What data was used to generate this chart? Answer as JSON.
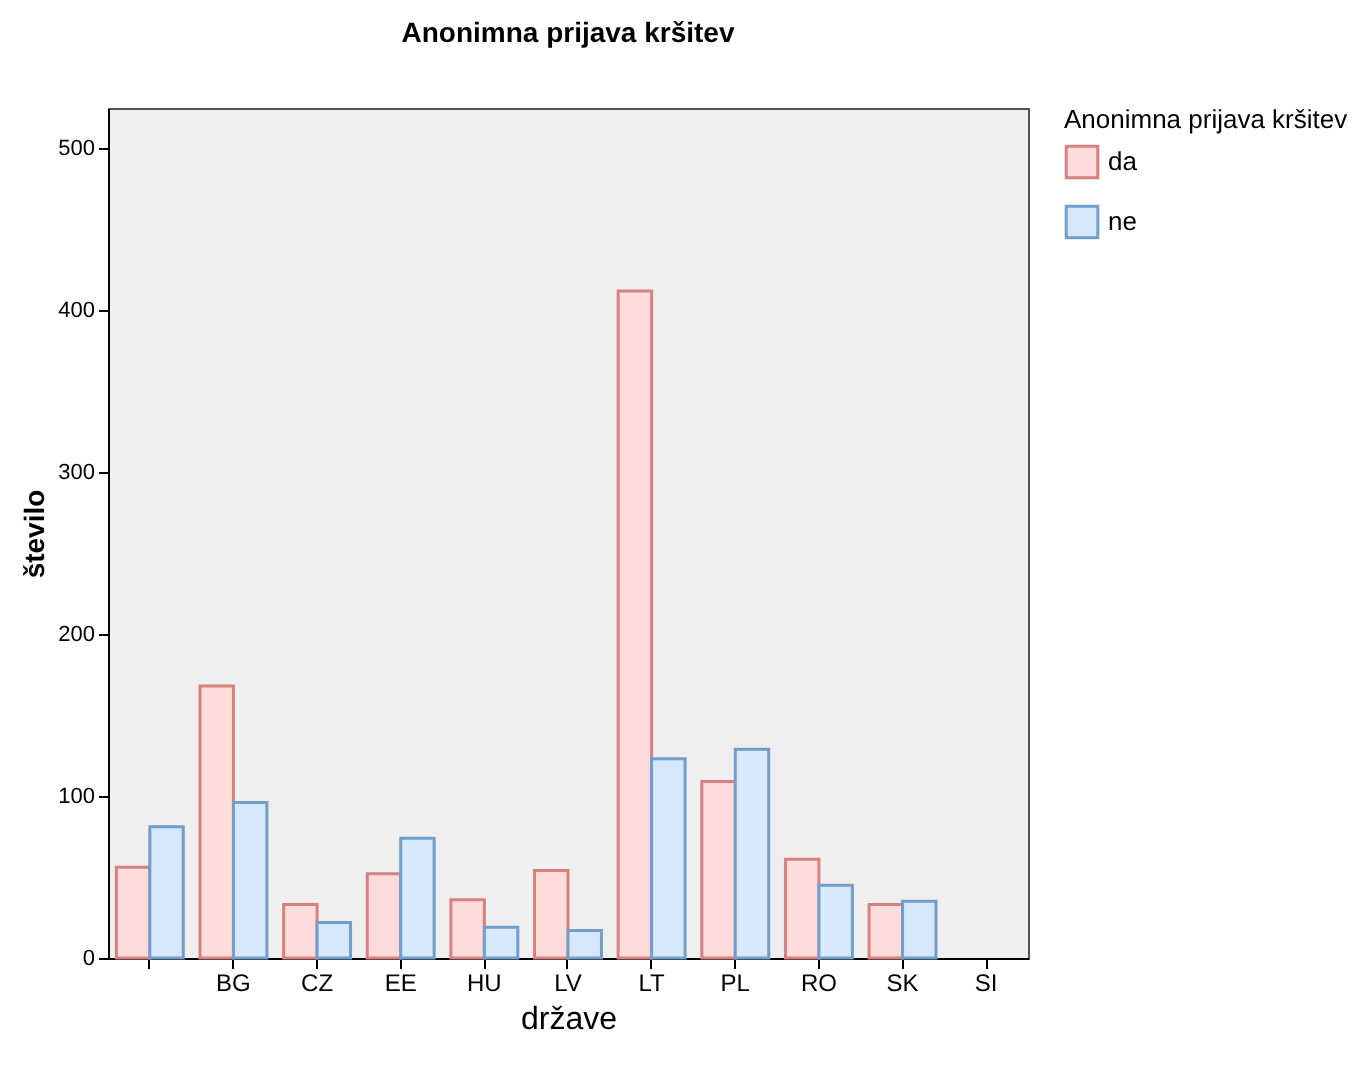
{
  "chart_data": {
    "type": "bar",
    "title": "Anonimna prijava kršitev",
    "xlabel": "države",
    "ylabel": "število",
    "legend_title": "Anonimna prijava kršitev",
    "categories": [
      null,
      "BG",
      "CZ",
      "EE",
      "HU",
      "LV",
      "LT",
      "PL",
      "RO",
      "SK",
      "SI"
    ],
    "series": [
      {
        "name": "da",
        "color": "#ffdcdc",
        "values": [
          56,
          168,
          33,
          52,
          36,
          54,
          412,
          109,
          61,
          33,
          null
        ]
      },
      {
        "name": "ne",
        "color": "#d6e8fa",
        "values": [
          81,
          96,
          22,
          74,
          19,
          17,
          123,
          129,
          45,
          35,
          null
        ]
      }
    ],
    "ylim": [
      0,
      525
    ],
    "yticks": [
      0,
      100,
      200,
      300,
      400,
      500
    ],
    "grid": false,
    "legend": "top right"
  }
}
